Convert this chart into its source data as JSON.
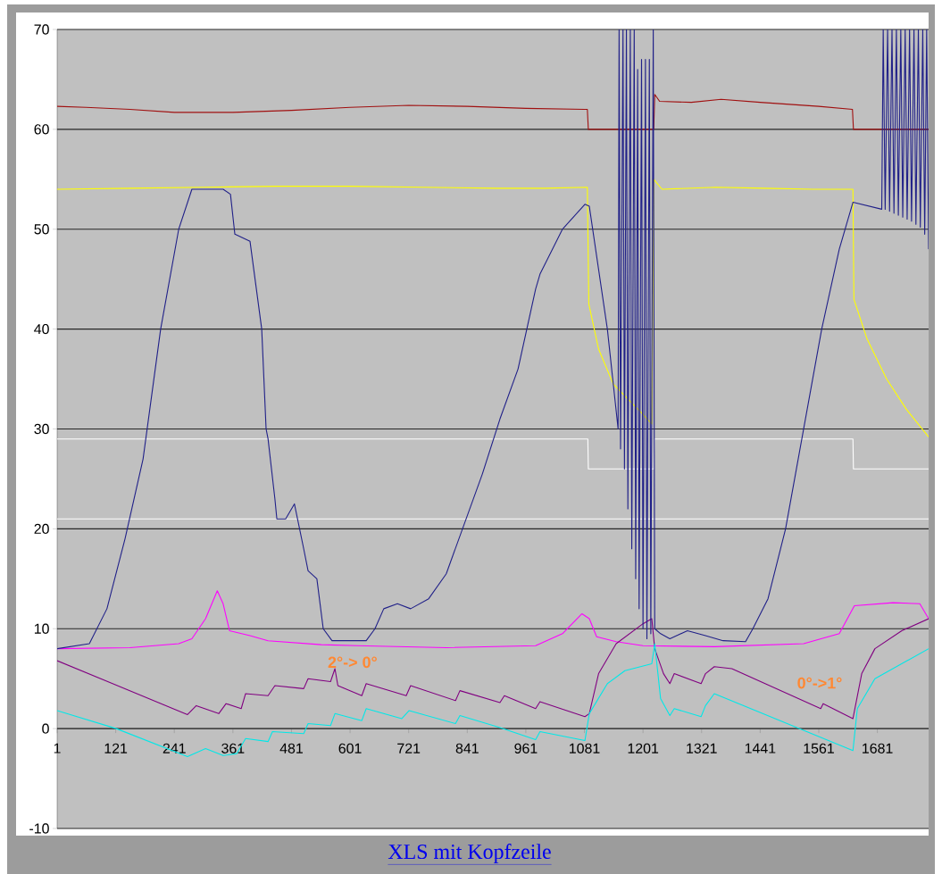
{
  "chart_data": {
    "type": "line",
    "xlim": [
      1,
      1786
    ],
    "ylim": [
      -10,
      70
    ],
    "xticks": [
      1,
      121,
      241,
      361,
      481,
      601,
      721,
      841,
      961,
      1081,
      1201,
      1321,
      1441,
      1561,
      1681
    ],
    "yticks": [
      -10,
      0,
      10,
      20,
      30,
      40,
      50,
      60,
      70
    ],
    "grid": "y",
    "marker": "none",
    "line_style": "solid",
    "annotations": [
      "2°-> 0°",
      "0°->1°",
      "XLS mit Kopfzeile"
    ],
    "series": [
      {
        "color": "#ffffff",
        "x": [
          1,
          1088,
          1089,
          1223,
          1224,
          1631,
          1632,
          1786
        ],
        "values": [
          29,
          29,
          26,
          26,
          29,
          29,
          26,
          26
        ]
      },
      {
        "color": "#ffffff",
        "x": [
          1,
          1786
        ],
        "values": [
          21,
          21
        ]
      },
      {
        "color": "#a01010",
        "x": [
          1,
          60,
          150,
          241,
          361,
          481,
          601,
          721,
          841,
          961,
          1081,
          1087,
          1089,
          1223,
          1225,
          1235,
          1300,
          1361,
          1441,
          1561,
          1630,
          1632,
          1786
        ],
        "values": [
          62.3,
          62.2,
          62,
          61.7,
          61.7,
          61.9,
          62.2,
          62.4,
          62.3,
          62.1,
          62,
          62,
          60,
          60,
          63.5,
          62.8,
          62.7,
          63,
          62.7,
          62.3,
          62,
          60,
          60
        ]
      },
      {
        "color": "#ffff00",
        "x": [
          1,
          150,
          300,
          450,
          600,
          750,
          900,
          1000,
          1087,
          1090,
          1110,
          1140,
          1170,
          1200,
          1219,
          1223,
          1240,
          1350,
          1450,
          1550,
          1631,
          1633,
          1660,
          1700,
          1740,
          1786
        ],
        "values": [
          54,
          54.1,
          54.2,
          54.3,
          54.3,
          54.2,
          54.1,
          54.1,
          54.2,
          42.5,
          38,
          34.5,
          33,
          31.5,
          30.5,
          55,
          54,
          54.2,
          54.1,
          54,
          54,
          43,
          39,
          35,
          32,
          29.2
        ]
      },
      {
        "color": "#ff00ff",
        "x": [
          1,
          150,
          250,
          277,
          305,
          329,
          341,
          354,
          396,
          433,
          542,
          616,
          798,
          981,
          1036,
          1076,
          1091,
          1106,
          1146,
          1201,
          1347,
          1530,
          1603,
          1634,
          1713,
          1768,
          1786
        ],
        "values": [
          8,
          8.1,
          8.5,
          9,
          11,
          13.8,
          12.5,
          9.8,
          9.3,
          8.8,
          8.4,
          8.3,
          8.1,
          8.3,
          9.5,
          11.5,
          11,
          9.2,
          8.7,
          8.3,
          8.2,
          8.5,
          9.5,
          12.3,
          12.6,
          12.5,
          11
        ]
      },
      {
        "color": "#800080",
        "x": [
          1,
          268,
          286,
          332,
          347,
          378,
          387,
          433,
          447,
          506,
          515,
          561,
          570,
          576,
          625,
          634,
          716,
          725,
          817,
          826,
          908,
          917,
          981,
          990,
          1082,
          1091,
          1110,
          1146,
          1201,
          1219,
          1225,
          1243,
          1256,
          1265,
          1320,
          1329,
          1347,
          1383,
          1565,
          1570,
          1631,
          1649,
          1676,
          1731,
          1786
        ],
        "values": [
          6.8,
          1.4,
          2.3,
          1.5,
          2.5,
          2,
          3.5,
          3.3,
          4.3,
          4,
          5,
          4.7,
          6,
          4.3,
          3.3,
          4.5,
          3.3,
          4.3,
          2.8,
          3.8,
          2.6,
          3.3,
          2,
          2.7,
          1.2,
          1.5,
          5.5,
          8.5,
          10.5,
          11,
          8,
          5.5,
          4.5,
          5.5,
          4.5,
          5.5,
          6.2,
          6,
          2,
          2.5,
          1,
          5.5,
          8,
          9.8,
          11
        ]
      },
      {
        "color": "#00e8e8",
        "x": [
          1,
          122,
          268,
          305,
          341,
          369,
          387,
          433,
          442,
          506,
          515,
          561,
          570,
          625,
          634,
          707,
          722,
          817,
          826,
          908,
          981,
          990,
          1082,
          1091,
          1128,
          1164,
          1219,
          1225,
          1237,
          1256,
          1265,
          1320,
          1329,
          1347,
          1631,
          1640,
          1676,
          1786
        ],
        "values": [
          1.8,
          0,
          -2.8,
          -2,
          -2.7,
          -2.5,
          -1,
          -1.3,
          -0.3,
          -0.5,
          0.5,
          0.3,
          1.5,
          0.8,
          2,
          1,
          1.8,
          0.5,
          1.3,
          0.1,
          -1.1,
          -0.3,
          -1.2,
          1.5,
          4.5,
          5.8,
          6.5,
          8.5,
          3,
          1.3,
          2,
          1.2,
          2.3,
          3.5,
          -2.2,
          2,
          5,
          8
        ]
      },
      {
        "color": "#202088",
        "x": [
          1,
          67,
          103,
          140,
          177,
          213,
          250,
          277,
          341,
          356,
          365,
          396,
          420,
          429,
          433,
          447,
          451,
          469,
          487,
          506,
          515,
          533,
          546,
          564,
          634,
          652,
          670,
          698,
          725,
          762,
          798,
          835,
          872,
          908,
          945,
          981,
          990,
          1036,
          1082,
          1091,
          1128,
          1150,
          1152,
          1155,
          1160,
          1163,
          1167,
          1170,
          1175,
          1178,
          1183,
          1186,
          1190,
          1193,
          1198,
          1201,
          1206,
          1209,
          1214,
          1217,
          1222,
          1225,
          1237,
          1256,
          1292,
          1329,
          1365,
          1411,
          1426,
          1457,
          1493,
          1530,
          1567,
          1603,
          1631,
          1690,
          1693,
          1697,
          1702,
          1706,
          1711,
          1715,
          1720,
          1724,
          1729,
          1733,
          1738,
          1742,
          1747,
          1751,
          1756,
          1760,
          1765,
          1769,
          1774,
          1778,
          1782,
          1786
        ],
        "values": [
          8,
          8.5,
          12,
          19,
          27,
          40,
          50,
          54,
          54,
          53.5,
          49.5,
          48.8,
          40,
          30,
          29,
          23,
          21,
          21,
          22.5,
          18,
          15.8,
          15,
          10,
          8.8,
          8.8,
          10,
          12,
          12.5,
          12,
          13,
          15.5,
          20.5,
          25.5,
          31,
          36,
          44,
          45.5,
          50,
          52.5,
          52.3,
          40,
          30,
          70,
          28,
          70,
          26,
          70,
          22,
          70,
          18,
          70,
          15,
          66,
          12,
          67,
          10,
          67,
          9,
          67,
          9.5,
          70,
          10,
          9.5,
          9,
          9.8,
          9.3,
          8.8,
          8.7,
          10,
          13,
          20,
          30,
          40,
          48,
          52.7,
          52,
          70,
          52,
          70,
          51.8,
          70,
          51.6,
          70,
          51.4,
          70,
          51.2,
          70,
          51,
          70,
          50.8,
          70,
          50.5,
          70,
          50.2,
          70,
          49.5,
          70,
          48
        ]
      }
    ]
  }
}
